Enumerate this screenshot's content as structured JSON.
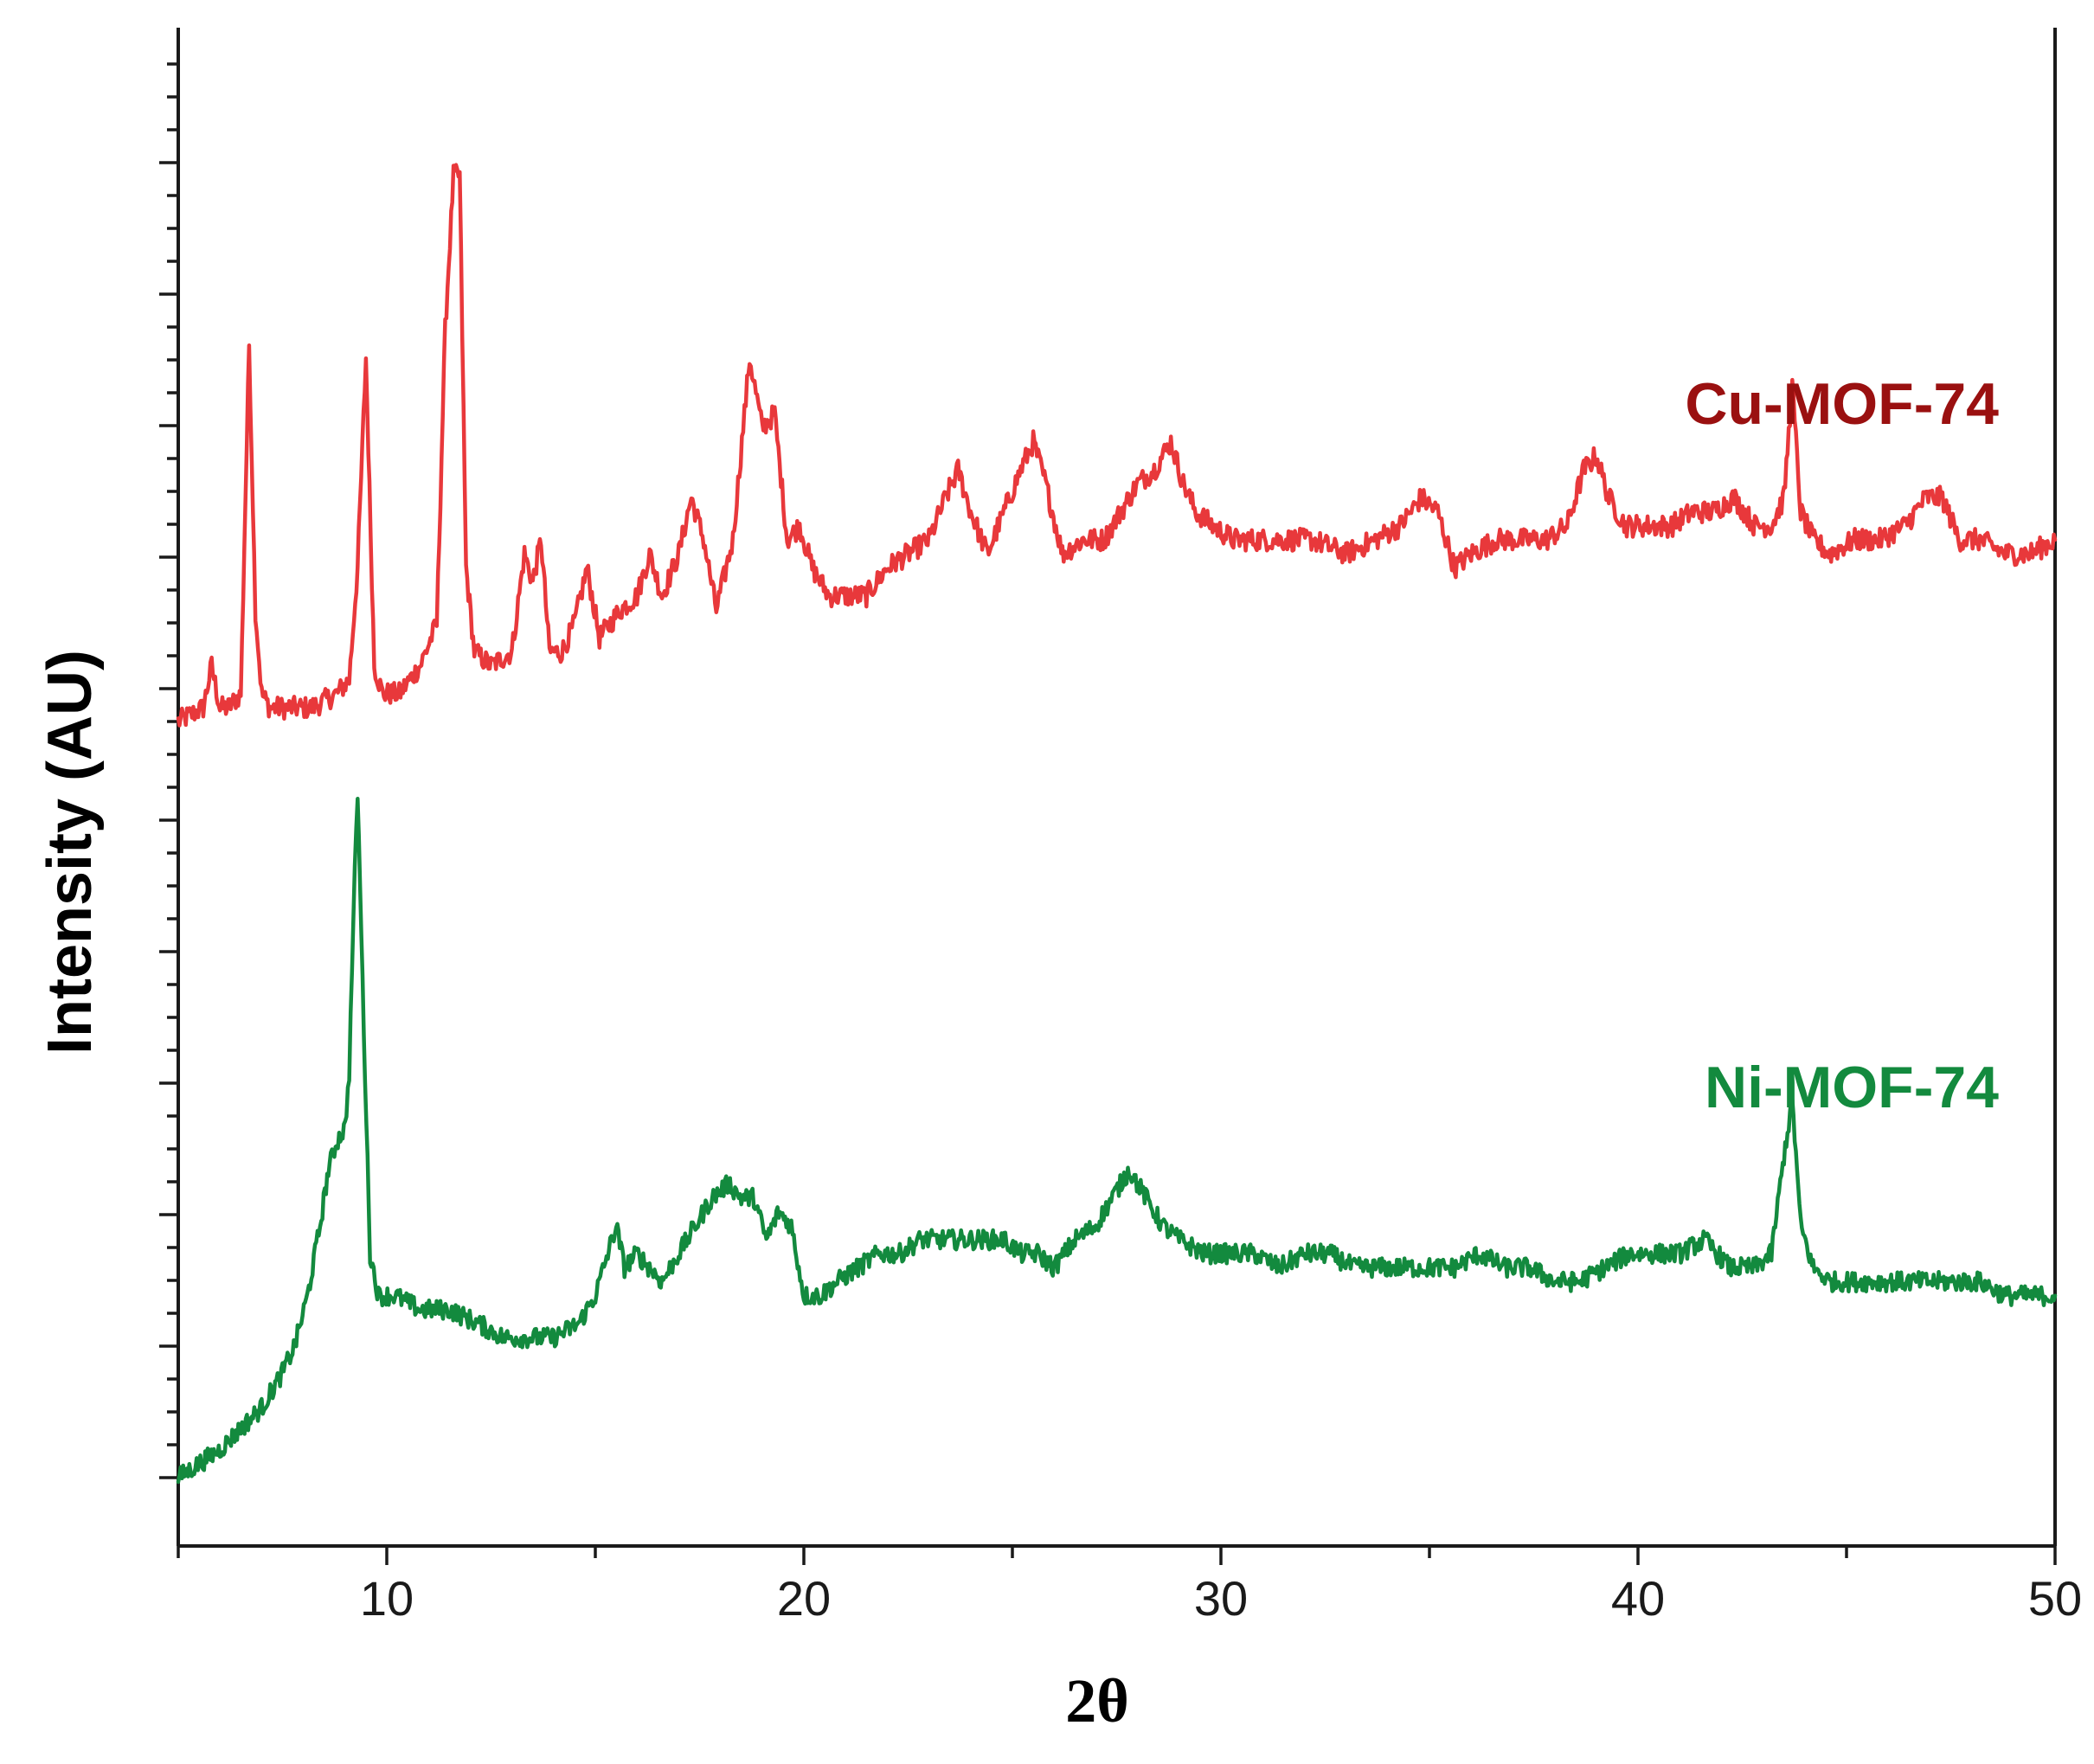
{
  "chart_data": {
    "type": "line",
    "title": "",
    "xlabel": "2θ",
    "ylabel": "Intensity (AU)",
    "xlim": [
      5,
      50
    ],
    "ylim": [
      0,
      10
    ],
    "x_ticks": [
      10,
      20,
      30,
      40,
      50
    ],
    "y_tick_labels_shown": false,
    "grid": false,
    "legend": "inline labels at right",
    "colors": {
      "Cu-MOF-74": "#e8383b",
      "Ni-MOF-74": "#138a3e",
      "Cu-label": "#9a1010"
    },
    "series": [
      {
        "name": "Cu-MOF-74",
        "color": "#e8383b",
        "label_color": "#9a1010",
        "x": [
          5.0,
          5.6,
          5.8,
          6.0,
          6.2,
          6.5,
          6.7,
          6.85,
          7.0,
          7.2,
          7.6,
          8.2,
          8.8,
          9.1,
          9.3,
          9.5,
          9.7,
          9.9,
          10.3,
          10.8,
          11.2,
          11.4,
          11.6,
          11.75,
          11.9,
          12.1,
          12.5,
          13.0,
          13.3,
          13.5,
          13.7,
          13.9,
          14.2,
          14.5,
          14.8,
          15.1,
          15.6,
          16.0,
          16.3,
          16.6,
          17.0,
          17.3,
          17.6,
          17.9,
          18.3,
          18.7,
          19.0,
          19.3,
          19.6,
          19.9,
          20.2,
          20.6,
          21.0,
          21.5,
          22.0,
          22.5,
          23.0,
          23.4,
          23.7,
          24.0,
          24.4,
          24.8,
          25.2,
          25.5,
          25.8,
          26.2,
          26.7,
          27.2,
          27.6,
          28.0,
          28.4,
          28.8,
          29.1,
          29.4,
          29.8,
          30.3,
          30.8,
          31.5,
          32.2,
          33.0,
          33.7,
          34.3,
          34.8,
          35.2,
          35.6,
          36.0,
          36.6,
          37.2,
          37.8,
          38.3,
          38.7,
          39.0,
          39.3,
          39.7,
          40.2,
          40.8,
          41.3,
          41.8,
          42.3,
          42.8,
          43.2,
          43.5,
          43.7,
          43.9,
          44.2,
          44.6,
          45.2,
          45.8,
          46.4,
          46.9,
          47.3,
          47.7,
          48.2,
          48.8,
          49.4,
          50.0
        ],
        "y": [
          5.4,
          5.5,
          5.8,
          5.5,
          5.5,
          5.6,
          8.1,
          6.2,
          5.6,
          5.5,
          5.5,
          5.5,
          5.6,
          5.7,
          6.5,
          8.0,
          5.8,
          5.6,
          5.6,
          5.8,
          6.1,
          8.2,
          9.3,
          9.3,
          6.5,
          5.9,
          5.8,
          5.9,
          6.6,
          6.4,
          6.7,
          5.9,
          5.9,
          6.1,
          6.5,
          6.0,
          6.2,
          6.3,
          6.6,
          6.3,
          6.6,
          7.0,
          6.7,
          6.2,
          6.7,
          8.0,
          7.5,
          7.6,
          6.7,
          6.8,
          6.5,
          6.3,
          6.3,
          6.3,
          6.5,
          6.6,
          6.7,
          7.0,
          7.2,
          6.9,
          6.6,
          6.9,
          7.2,
          7.4,
          7.1,
          6.6,
          6.7,
          6.7,
          6.9,
          7.1,
          7.2,
          7.4,
          7.1,
          6.9,
          6.8,
          6.7,
          6.7,
          6.7,
          6.7,
          6.6,
          6.7,
          6.8,
          7.0,
          6.9,
          6.5,
          6.6,
          6.7,
          6.7,
          6.7,
          6.8,
          7.2,
          7.3,
          7.0,
          6.8,
          6.8,
          6.8,
          6.9,
          6.9,
          7.0,
          6.8,
          6.8,
          7.0,
          7.8,
          6.9,
          6.7,
          6.6,
          6.7,
          6.7,
          6.8,
          7.0,
          7.0,
          6.7,
          6.7,
          6.6,
          6.6,
          6.7
        ]
      },
      {
        "name": "Ni-MOF-74",
        "color": "#138a3e",
        "x": [
          5.0,
          5.5,
          6.0,
          6.5,
          7.0,
          7.5,
          7.8,
          8.1,
          8.4,
          8.6,
          8.8,
          9.0,
          9.1,
          9.2,
          9.3,
          9.45,
          9.6,
          9.8,
          10.2,
          10.8,
          11.5,
          12.2,
          12.8,
          13.4,
          14.0,
          14.6,
          15.0,
          15.3,
          15.5,
          15.7,
          16.0,
          16.3,
          16.6,
          17.0,
          17.4,
          17.8,
          18.2,
          18.5,
          18.8,
          19.1,
          19.4,
          19.7,
          20.0,
          20.4,
          20.8,
          21.3,
          21.8,
          22.3,
          22.8,
          23.3,
          23.8,
          24.3,
          24.8,
          25.2,
          25.6,
          26.0,
          26.5,
          27.0,
          27.4,
          27.8,
          28.2,
          28.6,
          29.0,
          29.6,
          30.2,
          30.8,
          31.4,
          32.0,
          32.6,
          33.2,
          33.8,
          34.4,
          35.0,
          35.6,
          36.2,
          36.8,
          37.4,
          38.0,
          38.6,
          39.2,
          39.8,
          40.4,
          41.0,
          41.6,
          42.2,
          42.8,
          43.2,
          43.5,
          43.7,
          43.9,
          44.2,
          44.6,
          45.2,
          45.8,
          46.4,
          47.0,
          47.6,
          48.2,
          48.8,
          49.4,
          50.0
        ],
        "y": [
          0.0,
          0.1,
          0.2,
          0.35,
          0.5,
          0.75,
          0.95,
          1.3,
          1.8,
          2.2,
          2.4,
          2.5,
          2.9,
          4.0,
          4.9,
          3.2,
          1.6,
          1.3,
          1.3,
          1.2,
          1.2,
          1.1,
          1.0,
          1.0,
          1.0,
          1.1,
          1.3,
          1.6,
          1.8,
          1.5,
          1.6,
          1.5,
          1.4,
          1.6,
          1.8,
          2.0,
          2.1,
          2.0,
          2.0,
          1.7,
          1.9,
          1.8,
          1.3,
          1.3,
          1.4,
          1.5,
          1.6,
          1.6,
          1.7,
          1.7,
          1.7,
          1.7,
          1.7,
          1.6,
          1.6,
          1.5,
          1.7,
          1.8,
          2.0,
          2.2,
          2.0,
          1.8,
          1.7,
          1.6,
          1.6,
          1.6,
          1.5,
          1.6,
          1.6,
          1.5,
          1.5,
          1.5,
          1.5,
          1.5,
          1.6,
          1.5,
          1.5,
          1.4,
          1.4,
          1.5,
          1.6,
          1.6,
          1.6,
          1.7,
          1.5,
          1.5,
          1.6,
          2.3,
          2.7,
          1.8,
          1.5,
          1.4,
          1.4,
          1.4,
          1.4,
          1.4,
          1.4,
          1.4,
          1.3,
          1.3,
          1.3
        ]
      }
    ]
  }
}
